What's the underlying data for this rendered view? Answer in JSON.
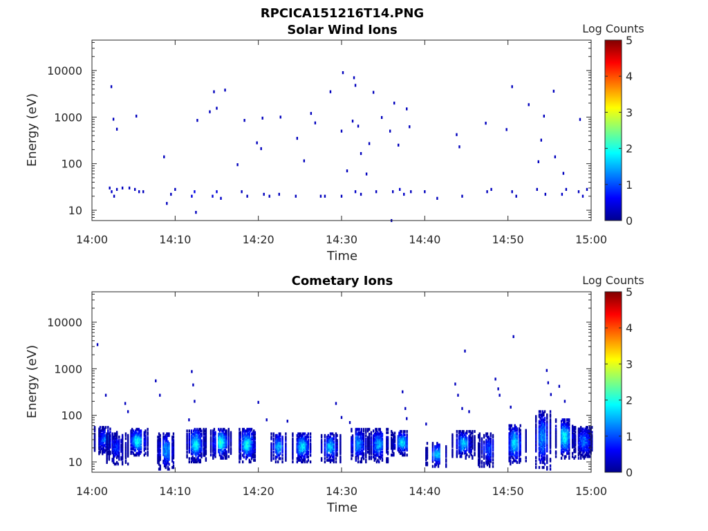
{
  "figure_title": "RPCICA151216T14.PNG",
  "chart_data": [
    {
      "type": "heatmap",
      "title": "Solar Wind Ions",
      "xlabel": "Time",
      "ylabel": "Energy (eV)",
      "x_ticks": [
        "14:00",
        "14:10",
        "14:20",
        "14:30",
        "14:40",
        "14:50",
        "15:00"
      ],
      "xlim": [
        "14:00",
        "15:00"
      ],
      "y_scale": "log",
      "y_ticks": [
        10,
        100,
        1000,
        10000
      ],
      "ylim": [
        6,
        45000
      ],
      "colorbar": {
        "label": "Log Counts",
        "range": [
          0,
          5
        ],
        "ticks": [
          0,
          1,
          2,
          3,
          4,
          5
        ],
        "colormap": "jet"
      },
      "cells": [
        {
          "t": "14:02:08",
          "e": 30,
          "v": 0.3
        },
        {
          "t": "14:02:22",
          "e": 25,
          "v": 0.35
        },
        {
          "t": "14:02:40",
          "e": 20,
          "v": 0.3
        },
        {
          "t": "14:03:00",
          "e": 28,
          "v": 0.3
        },
        {
          "t": "14:03:40",
          "e": 30,
          "v": 0.3
        },
        {
          "t": "14:04:30",
          "e": 30,
          "v": 0.3
        },
        {
          "t": "14:05:10",
          "e": 28,
          "v": 0.3
        },
        {
          "t": "14:05:40",
          "e": 25,
          "v": 0.35
        },
        {
          "t": "14:06:10",
          "e": 25,
          "v": 0.3
        },
        {
          "t": "14:09:00",
          "e": 14,
          "v": 0.3
        },
        {
          "t": "14:09:30",
          "e": 22,
          "v": 0.3
        },
        {
          "t": "14:10:00",
          "e": 28,
          "v": 0.3
        },
        {
          "t": "14:12:00",
          "e": 20,
          "v": 0.45
        },
        {
          "t": "14:12:20",
          "e": 25,
          "v": 0.5
        },
        {
          "t": "14:12:30",
          "e": 9,
          "v": 0.3
        },
        {
          "t": "14:14:30",
          "e": 20,
          "v": 0.4
        },
        {
          "t": "14:15:00",
          "e": 25,
          "v": 0.45
        },
        {
          "t": "14:15:30",
          "e": 18,
          "v": 0.35
        },
        {
          "t": "14:18:00",
          "e": 25,
          "v": 0.3
        },
        {
          "t": "14:18:40",
          "e": 20,
          "v": 0.3
        },
        {
          "t": "14:20:40",
          "e": 22,
          "v": 0.3
        },
        {
          "t": "14:21:20",
          "e": 20,
          "v": 0.3
        },
        {
          "t": "14:22:30",
          "e": 22,
          "v": 0.3
        },
        {
          "t": "14:24:30",
          "e": 20,
          "v": 0.3
        },
        {
          "t": "14:27:30",
          "e": 20,
          "v": 0.3
        },
        {
          "t": "14:28:00",
          "e": 20,
          "v": 0.3
        },
        {
          "t": "14:30:00",
          "e": 20,
          "v": 0.3
        },
        {
          "t": "14:31:40",
          "e": 25,
          "v": 0.35
        },
        {
          "t": "14:32:20",
          "e": 22,
          "v": 0.3
        },
        {
          "t": "14:34:10",
          "e": 25,
          "v": 0.3
        },
        {
          "t": "14:36:10",
          "e": 25,
          "v": 0.3
        },
        {
          "t": "14:37:00",
          "e": 28,
          "v": 0.4
        },
        {
          "t": "14:37:30",
          "e": 22,
          "v": 0.35
        },
        {
          "t": "14:38:20",
          "e": 25,
          "v": 0.3
        },
        {
          "t": "14:40:00",
          "e": 25,
          "v": 0.3
        },
        {
          "t": "14:41:30",
          "e": 18,
          "v": 0.3
        },
        {
          "t": "14:44:30",
          "e": 20,
          "v": 0.3
        },
        {
          "t": "14:47:30",
          "e": 25,
          "v": 0.3
        },
        {
          "t": "14:48:00",
          "e": 28,
          "v": 0.3
        },
        {
          "t": "14:50:30",
          "e": 25,
          "v": 0.3
        },
        {
          "t": "14:51:00",
          "e": 20,
          "v": 0.3
        },
        {
          "t": "14:53:30",
          "e": 28,
          "v": 0.3
        },
        {
          "t": "14:54:30",
          "e": 22,
          "v": 0.3
        },
        {
          "t": "14:56:30",
          "e": 22,
          "v": 0.35
        },
        {
          "t": "14:57:00",
          "e": 28,
          "v": 0.3
        },
        {
          "t": "14:58:30",
          "e": 25,
          "v": 0.3
        },
        {
          "t": "14:59:00",
          "e": 20,
          "v": 0.35
        },
        {
          "t": "14:59:30",
          "e": 28,
          "v": 0.3
        },
        {
          "t": "14:02:20",
          "e": 4500,
          "v": 0.3
        },
        {
          "t": "14:02:35",
          "e": 900,
          "v": 0.3
        },
        {
          "t": "14:03:00",
          "e": 550,
          "v": 0.3
        },
        {
          "t": "14:05:20",
          "e": 1050,
          "v": 0.3
        },
        {
          "t": "14:08:40",
          "e": 140,
          "v": 0.3
        },
        {
          "t": "14:12:40",
          "e": 850,
          "v": 0.3
        },
        {
          "t": "14:14:10",
          "e": 1300,
          "v": 0.3
        },
        {
          "t": "14:14:40",
          "e": 3500,
          "v": 0.3
        },
        {
          "t": "14:15:00",
          "e": 1550,
          "v": 0.3
        },
        {
          "t": "14:16:00",
          "e": 3800,
          "v": 0.3
        },
        {
          "t": "14:17:30",
          "e": 95,
          "v": 0.3
        },
        {
          "t": "14:18:20",
          "e": 850,
          "v": 0.3
        },
        {
          "t": "14:19:50",
          "e": 280,
          "v": 0.3
        },
        {
          "t": "14:20:20",
          "e": 210,
          "v": 0.3
        },
        {
          "t": "14:20:30",
          "e": 950,
          "v": 0.3
        },
        {
          "t": "14:22:40",
          "e": 1000,
          "v": 0.3
        },
        {
          "t": "14:24:40",
          "e": 350,
          "v": 0.3
        },
        {
          "t": "14:25:30",
          "e": 115,
          "v": 0.3
        },
        {
          "t": "14:26:20",
          "e": 1200,
          "v": 0.3
        },
        {
          "t": "14:26:50",
          "e": 750,
          "v": 0.3
        },
        {
          "t": "14:28:40",
          "e": 3500,
          "v": 0.3
        },
        {
          "t": "14:30:00",
          "e": 500,
          "v": 0.3
        },
        {
          "t": "14:30:10",
          "e": 9000,
          "v": 0.3
        },
        {
          "t": "14:30:40",
          "e": 70,
          "v": 0.3
        },
        {
          "t": "14:31:20",
          "e": 820,
          "v": 0.3
        },
        {
          "t": "14:31:30",
          "e": 7000,
          "v": 0.3
        },
        {
          "t": "14:31:40",
          "e": 4800,
          "v": 0.3
        },
        {
          "t": "14:32:00",
          "e": 640,
          "v": 0.3
        },
        {
          "t": "14:32:20",
          "e": 165,
          "v": 0.3
        },
        {
          "t": "14:33:00",
          "e": 60,
          "v": 0.3
        },
        {
          "t": "14:33:20",
          "e": 270,
          "v": 0.3
        },
        {
          "t": "14:33:50",
          "e": 3400,
          "v": 0.3
        },
        {
          "t": "14:34:50",
          "e": 980,
          "v": 0.3
        },
        {
          "t": "14:35:50",
          "e": 500,
          "v": 0.3
        },
        {
          "t": "14:36:20",
          "e": 2000,
          "v": 0.3
        },
        {
          "t": "14:36:50",
          "e": 250,
          "v": 0.3
        },
        {
          "t": "14:37:50",
          "e": 1500,
          "v": 0.3
        },
        {
          "t": "14:38:10",
          "e": 620,
          "v": 0.3
        },
        {
          "t": "14:43:50",
          "e": 420,
          "v": 0.3
        },
        {
          "t": "14:44:10",
          "e": 230,
          "v": 0.3
        },
        {
          "t": "14:47:20",
          "e": 740,
          "v": 0.3
        },
        {
          "t": "14:49:50",
          "e": 540,
          "v": 0.3
        },
        {
          "t": "14:50:30",
          "e": 4500,
          "v": 0.3
        },
        {
          "t": "14:52:30",
          "e": 1850,
          "v": 0.3
        },
        {
          "t": "14:53:40",
          "e": 110,
          "v": 0.3
        },
        {
          "t": "14:54:00",
          "e": 320,
          "v": 0.3
        },
        {
          "t": "14:54:20",
          "e": 1050,
          "v": 0.3
        },
        {
          "t": "14:55:30",
          "e": 3600,
          "v": 0.3
        },
        {
          "t": "14:55:40",
          "e": 140,
          "v": 0.3
        },
        {
          "t": "14:56:40",
          "e": 62,
          "v": 0.3
        },
        {
          "t": "14:58:40",
          "e": 890,
          "v": 0.3
        },
        {
          "t": "14:36:00",
          "e": 6,
          "v": 0.3
        }
      ]
    },
    {
      "type": "heatmap",
      "title": "Cometary Ions",
      "xlabel": "Time",
      "ylabel": "Energy (eV)",
      "x_ticks": [
        "14:00",
        "14:10",
        "14:20",
        "14:30",
        "14:40",
        "14:50",
        "15:00"
      ],
      "xlim": [
        "14:00",
        "15:00"
      ],
      "y_scale": "log",
      "y_ticks": [
        10,
        100,
        1000,
        10000
      ],
      "ylim": [
        6,
        45000
      ],
      "colorbar": {
        "label": "Log Counts",
        "range": [
          0,
          5
        ],
        "ticks": [
          0,
          1,
          2,
          3,
          4,
          5
        ],
        "colormap": "jet"
      },
      "bursts": [
        {
          "t": "14:01:40",
          "e_min": 15,
          "e_max": 55,
          "peak": 1.2
        },
        {
          "t": "14:03:00",
          "e_min": 9,
          "e_max": 40,
          "peak": 0.8
        },
        {
          "t": "14:05:30",
          "e_min": 14,
          "e_max": 50,
          "peak": 1.9
        },
        {
          "t": "14:09:00",
          "e_min": 7,
          "e_max": 40,
          "peak": 1.4
        },
        {
          "t": "14:12:30",
          "e_min": 10,
          "e_max": 50,
          "peak": 1.9
        },
        {
          "t": "14:15:30",
          "e_min": 12,
          "e_max": 50,
          "peak": 2.1
        },
        {
          "t": "14:18:40",
          "e_min": 10,
          "e_max": 50,
          "peak": 1.9
        },
        {
          "t": "14:22:30",
          "e_min": 10,
          "e_max": 40,
          "peak": 1.4
        },
        {
          "t": "14:25:20",
          "e_min": 10,
          "e_max": 40,
          "peak": 1.8
        },
        {
          "t": "14:28:40",
          "e_min": 10,
          "e_max": 40,
          "peak": 1.6
        },
        {
          "t": "14:32:00",
          "e_min": 10,
          "e_max": 50,
          "peak": 1.4
        },
        {
          "t": "14:34:30",
          "e_min": 10,
          "e_max": 50,
          "peak": 1.5
        },
        {
          "t": "14:37:20",
          "e_min": 14,
          "e_max": 45,
          "peak": 1.8
        },
        {
          "t": "14:41:30",
          "e_min": 8,
          "e_max": 25,
          "peak": 1.6
        },
        {
          "t": "14:44:40",
          "e_min": 12,
          "e_max": 45,
          "peak": 1.6
        },
        {
          "t": "14:47:40",
          "e_min": 8,
          "e_max": 40,
          "peak": 1.0
        },
        {
          "t": "14:50:50",
          "e_min": 9,
          "e_max": 60,
          "peak": 1.7
        },
        {
          "t": "14:54:10",
          "e_min": 7,
          "e_max": 120,
          "peak": 1.3
        },
        {
          "t": "14:56:50",
          "e_min": 12,
          "e_max": 80,
          "peak": 1.9
        },
        {
          "t": "14:59:10",
          "e_min": 12,
          "e_max": 55,
          "peak": 1.2
        }
      ],
      "cells": [
        {
          "t": "14:00:40",
          "e": 3300,
          "v": 0.3
        },
        {
          "t": "14:01:40",
          "e": 270,
          "v": 0.3
        },
        {
          "t": "14:04:00",
          "e": 180,
          "v": 0.3
        },
        {
          "t": "14:04:20",
          "e": 120,
          "v": 0.3
        },
        {
          "t": "14:07:40",
          "e": 550,
          "v": 0.3
        },
        {
          "t": "14:08:10",
          "e": 270,
          "v": 0.3
        },
        {
          "t": "14:11:40",
          "e": 80,
          "v": 0.3
        },
        {
          "t": "14:12:00",
          "e": 870,
          "v": 0.3
        },
        {
          "t": "14:12:10",
          "e": 450,
          "v": 0.3
        },
        {
          "t": "14:12:20",
          "e": 200,
          "v": 0.3
        },
        {
          "t": "14:20:00",
          "e": 190,
          "v": 0.3
        },
        {
          "t": "14:21:00",
          "e": 80,
          "v": 0.3
        },
        {
          "t": "14:23:30",
          "e": 75,
          "v": 0.3
        },
        {
          "t": "14:29:20",
          "e": 180,
          "v": 0.3
        },
        {
          "t": "14:30:00",
          "e": 90,
          "v": 0.3
        },
        {
          "t": "14:31:00",
          "e": 70,
          "v": 0.3
        },
        {
          "t": "14:37:20",
          "e": 320,
          "v": 0.3
        },
        {
          "t": "14:37:40",
          "e": 140,
          "v": 0.3
        },
        {
          "t": "14:37:50",
          "e": 85,
          "v": 0.3
        },
        {
          "t": "14:40:10",
          "e": 65,
          "v": 0.3
        },
        {
          "t": "14:43:40",
          "e": 470,
          "v": 0.3
        },
        {
          "t": "14:44:00",
          "e": 270,
          "v": 0.3
        },
        {
          "t": "14:44:30",
          "e": 140,
          "v": 0.3
        },
        {
          "t": "14:44:50",
          "e": 2400,
          "v": 0.3
        },
        {
          "t": "14:45:20",
          "e": 120,
          "v": 0.3
        },
        {
          "t": "14:48:30",
          "e": 600,
          "v": 0.3
        },
        {
          "t": "14:48:50",
          "e": 370,
          "v": 0.3
        },
        {
          "t": "14:49:00",
          "e": 270,
          "v": 0.3
        },
        {
          "t": "14:50:20",
          "e": 150,
          "v": 0.3
        },
        {
          "t": "14:50:40",
          "e": 4900,
          "v": 0.3
        },
        {
          "t": "14:54:40",
          "e": 920,
          "v": 0.3
        },
        {
          "t": "14:54:50",
          "e": 500,
          "v": 0.3
        },
        {
          "t": "14:55:10",
          "e": 280,
          "v": 0.3
        },
        {
          "t": "14:56:10",
          "e": 420,
          "v": 0.3
        },
        {
          "t": "14:56:50",
          "e": 200,
          "v": 0.3
        }
      ]
    }
  ]
}
